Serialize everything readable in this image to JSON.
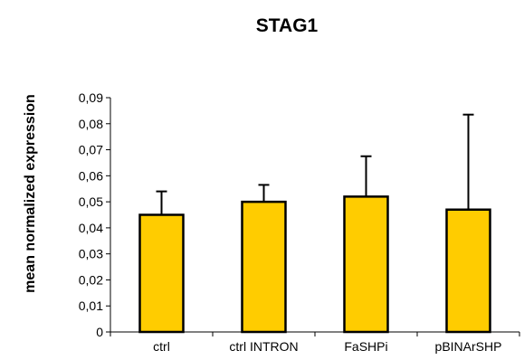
{
  "chart_data": {
    "type": "bar",
    "title": "STAG1",
    "xlabel": "",
    "ylabel": "mean normalized expression",
    "categories": [
      "ctrl",
      "ctrl INTRON",
      "FaSHPi",
      "pBINArSHP"
    ],
    "values": [
      0.045,
      0.05,
      0.052,
      0.047
    ],
    "error_upper": [
      0.054,
      0.0565,
      0.0675,
      0.0835
    ],
    "ylim": [
      0,
      0.09
    ],
    "yticks": [
      "0",
      "0,01",
      "0,02",
      "0,03",
      "0,04",
      "0,05",
      "0,06",
      "0,07",
      "0,08",
      "0,09"
    ],
    "grid": false,
    "legend": "none",
    "bar_color": "#ffcc00",
    "bar_edge_color": "#000000"
  }
}
